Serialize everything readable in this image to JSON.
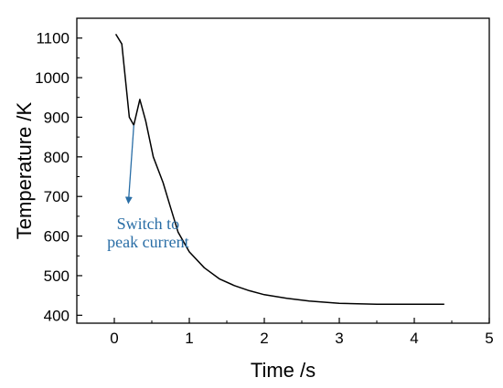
{
  "chart_data": {
    "type": "line",
    "title": "",
    "xlabel": "Time /s",
    "ylabel": "Temperature /K",
    "xlim": [
      -0.5,
      5
    ],
    "ylim": [
      380,
      1150
    ],
    "x_ticks": [
      0,
      1,
      2,
      3,
      4,
      5
    ],
    "x_tick_labels": [
      "0",
      "1",
      "2",
      "3",
      "4",
      "5"
    ],
    "y_ticks": [
      400,
      500,
      600,
      700,
      800,
      900,
      1000,
      1100
    ],
    "y_tick_labels": [
      "400",
      "500",
      "600",
      "700",
      "800",
      "900",
      "1000",
      "1100"
    ],
    "grid": false,
    "legend": "none",
    "series": [
      {
        "color": "#000000",
        "x": [
          0.02,
          0.1,
          0.2,
          0.26,
          0.34,
          0.42,
          0.52,
          0.65,
          0.75,
          0.85,
          1.0,
          1.2,
          1.4,
          1.6,
          1.8,
          2.0,
          2.3,
          2.6,
          3.0,
          3.5,
          4.0,
          4.4
        ],
        "y": [
          1110,
          1085,
          900,
          880,
          945,
          890,
          800,
          735,
          672,
          610,
          560,
          520,
          492,
          475,
          462,
          452,
          443,
          436,
          430,
          428,
          428,
          428
        ]
      }
    ],
    "annotations": [
      {
        "text_lines": [
          "Switch to",
          "peak current"
        ],
        "color": "#2a6ea6",
        "text_x": 0.45,
        "text_y_lines": [
          617,
          571
        ],
        "arrow_from": [
          0.26,
          880
        ],
        "arrow_to": [
          0.19,
          690
        ]
      }
    ]
  }
}
